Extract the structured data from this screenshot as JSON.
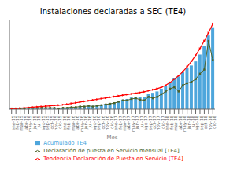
{
  "chart_data": {
    "type": "bar",
    "title": "Instalaciones declaradas a SEC (TE4)",
    "xlabel": "Mes",
    "categories": [
      "ene-15",
      "feb-15",
      "mar-15",
      "abr-15",
      "may-15",
      "jun-15",
      "jul-15",
      "ago-15",
      "sep-15",
      "oct-15",
      "nov-15",
      "dic-15",
      "ene-16",
      "feb-16",
      "mar-16",
      "abr-16",
      "may-16",
      "jun-16",
      "jul-16",
      "ago-16",
      "sep-16",
      "oct-16",
      "nov-16",
      "dic-16",
      "ene-17",
      "feb-17",
      "mar-17",
      "abr-17",
      "may-17",
      "jun-17",
      "jul-17",
      "ago-17",
      "sep-17",
      "oct-17",
      "nov-17",
      "dic-17",
      "ene-18",
      "feb-18",
      "mar-18",
      "abr-18",
      "may-18",
      "jun-18",
      "jul-18",
      "ago-18",
      "sep-18",
      "oct-18",
      "nov-18",
      "dic-18"
    ],
    "series": [
      {
        "name": "Acumulado TE4",
        "type": "bar",
        "color": "#4EA6DC",
        "values": [
          1,
          1,
          1,
          1,
          1,
          1,
          1,
          1,
          1,
          2,
          2,
          2,
          2,
          2,
          3,
          3,
          4,
          4,
          5,
          5,
          6,
          7,
          8,
          9,
          10,
          12,
          14,
          15,
          17,
          18,
          18,
          18,
          22,
          24,
          26,
          30,
          34,
          40,
          46,
          48,
          54,
          60,
          64,
          70,
          80,
          92,
          108,
          120
        ]
      },
      {
        "name": "Declaración de puesta en Servicio mensual [TE4]",
        "type": "line",
        "color": "#4E6228",
        "marker": "square",
        "values": [
          1,
          1,
          1,
          1,
          2,
          2,
          2,
          2,
          2,
          2,
          2,
          1,
          2,
          2,
          3,
          3,
          4,
          4,
          5,
          4,
          5,
          6,
          7,
          8,
          9,
          11,
          13,
          13,
          15,
          16,
          14,
          13,
          18,
          16,
          18,
          22,
          26,
          30,
          32,
          26,
          35,
          38,
          40,
          44,
          52,
          58,
          100,
          72
        ]
      },
      {
        "name": "Tendencia Declaración de Puesta en Servicio [TE4]",
        "type": "line",
        "color": "#FF0000",
        "marker": "triangle",
        "values": [
          0.5,
          1.0,
          1.5,
          2.0,
          2.5,
          3.0,
          3.5,
          4.0,
          4.5,
          5.0,
          5.5,
          6.0,
          6.5,
          7.5,
          8.5,
          9.5,
          10.5,
          11.5,
          12.5,
          13.5,
          14.5,
          15.5,
          16.5,
          17.5,
          18.5,
          19.5,
          20.5,
          21.5,
          22.5,
          23.5,
          24.5,
          25.5,
          27.0,
          28.5,
          30.0,
          32.0,
          35.0,
          39.0,
          44.0,
          49.0,
          55.0,
          62.0,
          70.0,
          79.0,
          89.0,
          100.0,
          112.0,
          125.0
        ]
      }
    ],
    "ylim": [
      0,
      130
    ],
    "yticks": [],
    "grid": false,
    "legend": "bottom",
    "tick_labels": "x"
  }
}
